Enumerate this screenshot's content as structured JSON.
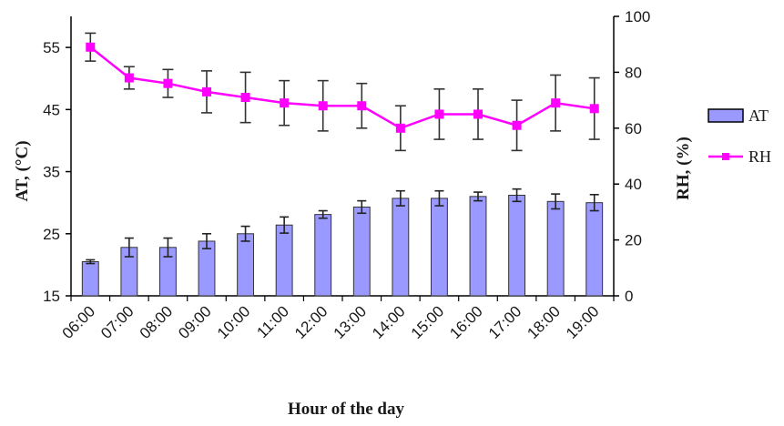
{
  "chart_data": {
    "type": "bar",
    "categories": [
      "06:00",
      "07:00",
      "08:00",
      "09:00",
      "10:00",
      "11:00",
      "12:00",
      "13:00",
      "14:00",
      "15:00",
      "16:00",
      "17:00",
      "18:00",
      "19:00"
    ],
    "xlabel": "Hour of the day",
    "ylabel_left": "AT, (°C)",
    "ylabel_right": "RH, (%)",
    "ylim_left": [
      15,
      60
    ],
    "yticks_left": [
      15,
      25,
      35,
      45,
      55
    ],
    "ylim_right": [
      0,
      100
    ],
    "yticks_right": [
      0,
      20,
      40,
      60,
      80,
      100
    ],
    "grid": false,
    "legend_position": "right",
    "series": [
      {
        "name": "AT",
        "type": "bar",
        "axis": "left",
        "color": "#9999ff",
        "values": [
          20.5,
          22.8,
          22.8,
          23.8,
          25.0,
          26.4,
          28.1,
          29.3,
          30.7,
          30.7,
          31.0,
          31.2,
          30.2,
          30.0
        ],
        "error": [
          0.3,
          1.5,
          1.5,
          1.2,
          1.2,
          1.3,
          0.6,
          1.0,
          1.2,
          1.2,
          0.7,
          1.0,
          1.2,
          1.3
        ]
      },
      {
        "name": "RH",
        "type": "line",
        "axis": "right",
        "color": "#ff00ff",
        "values": [
          89,
          78,
          76,
          73,
          71,
          69,
          68,
          68,
          60,
          65,
          65,
          61,
          69,
          67
        ],
        "error": [
          5,
          4,
          5,
          7.5,
          9,
          8,
          9,
          8,
          8,
          9,
          9,
          9,
          10,
          11
        ]
      }
    ]
  }
}
